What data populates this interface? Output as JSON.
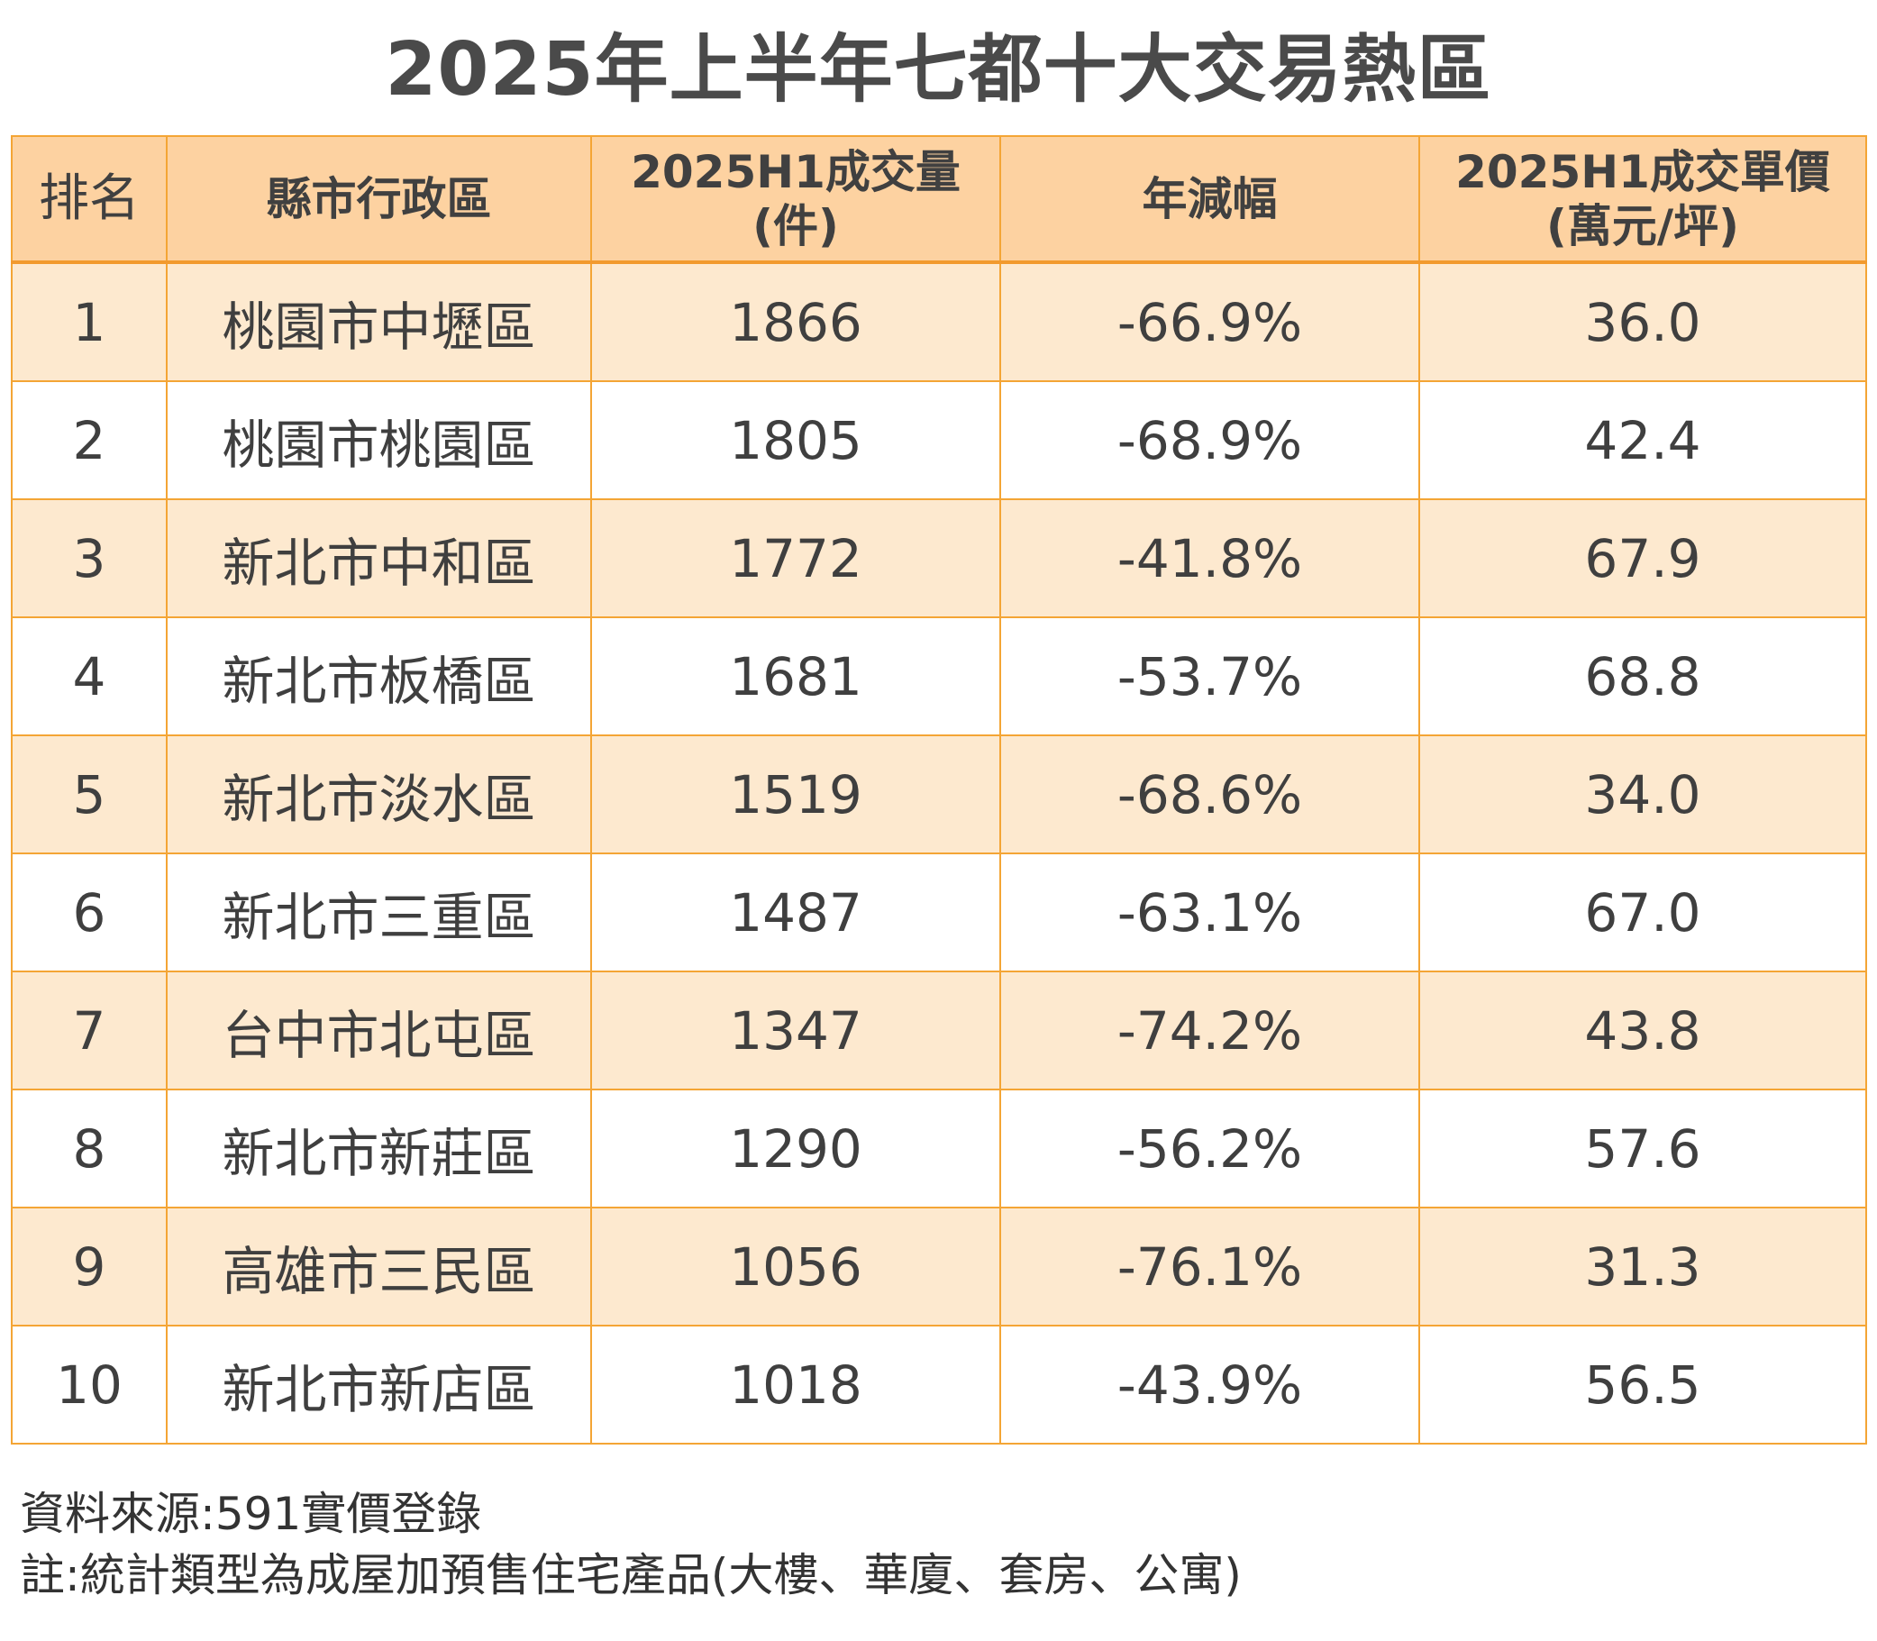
{
  "title": "2025年上半年七都十大交易熱區",
  "table": {
    "headers": {
      "rank": "排名",
      "district": "縣市行政區",
      "volume_line1": "2025H1成交量",
      "volume_line2": "(件)",
      "yoy": "年減幅",
      "price_line1": "2025H1成交單價",
      "price_line2": "(萬元/坪)"
    },
    "rows": [
      {
        "rank": "1",
        "district": "桃園市中壢區",
        "volume": "1866",
        "yoy": "-66.9%",
        "price": "36.0"
      },
      {
        "rank": "2",
        "district": "桃園市桃園區",
        "volume": "1805",
        "yoy": "-68.9%",
        "price": "42.4"
      },
      {
        "rank": "3",
        "district": "新北市中和區",
        "volume": "1772",
        "yoy": "-41.8%",
        "price": "67.9"
      },
      {
        "rank": "4",
        "district": "新北市板橋區",
        "volume": "1681",
        "yoy": "-53.7%",
        "price": "68.8"
      },
      {
        "rank": "5",
        "district": "新北市淡水區",
        "volume": "1519",
        "yoy": "-68.6%",
        "price": "34.0"
      },
      {
        "rank": "6",
        "district": "新北市三重區",
        "volume": "1487",
        "yoy": "-63.1%",
        "price": "67.0"
      },
      {
        "rank": "7",
        "district": "台中市北屯區",
        "volume": "1347",
        "yoy": "-74.2%",
        "price": "43.8"
      },
      {
        "rank": "8",
        "district": "新北市新莊區",
        "volume": "1290",
        "yoy": "-56.2%",
        "price": "57.6"
      },
      {
        "rank": "9",
        "district": "高雄市三民區",
        "volume": "1056",
        "yoy": "-76.1%",
        "price": "31.3"
      },
      {
        "rank": "10",
        "district": "新北市新店區",
        "volume": "1018",
        "yoy": "-43.9%",
        "price": "56.5"
      }
    ]
  },
  "footnotes": {
    "source": "資料來源:591實價登錄",
    "note": "註:統計類型為成屋加預售住宅產品(大樓、華廈、套房、公寓)"
  },
  "colors": {
    "header_bg": "#fdd2a1",
    "odd_row_bg": "#fde9cf",
    "even_row_bg": "#ffffff",
    "border": "#f4a535"
  }
}
